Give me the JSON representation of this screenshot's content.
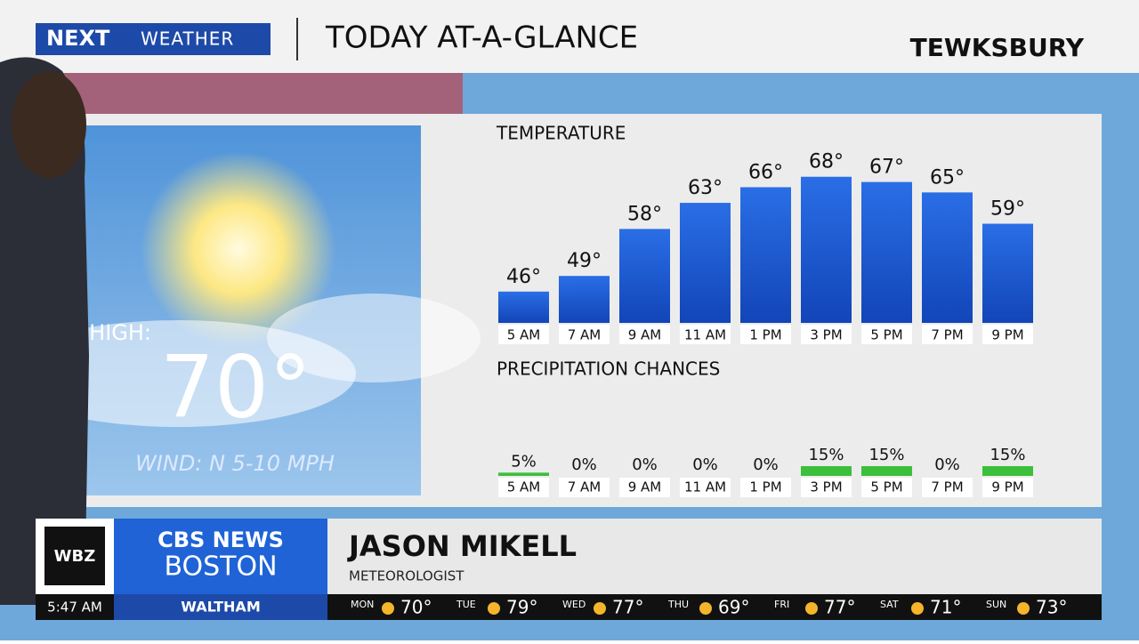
{
  "header": {
    "logo_next": "NEXT",
    "logo_weather": "WEATHER",
    "title": "TODAY AT-A-GLANCE",
    "location": "TEWKSBURY"
  },
  "summary": {
    "high_label": "HIGH:",
    "high": "70°",
    "wind": "WIND: N 5-10 MPH"
  },
  "chart_data": [
    {
      "type": "bar",
      "title": "TEMPERATURE",
      "categories": [
        "5 AM",
        "7 AM",
        "9 AM",
        "11 AM",
        "1 PM",
        "3 PM",
        "5 PM",
        "7 PM",
        "9 PM"
      ],
      "values": [
        46,
        49,
        58,
        63,
        66,
        68,
        67,
        65,
        59
      ],
      "value_labels": [
        "46°",
        "49°",
        "58°",
        "63°",
        "66°",
        "68°",
        "67°",
        "65°",
        "59°"
      ],
      "color": "#1f5fd8",
      "ylim": [
        40,
        70
      ]
    },
    {
      "type": "bar",
      "title": "PRECIPITATION CHANCES",
      "categories": [
        "5 AM",
        "7 AM",
        "9 AM",
        "11 AM",
        "1 PM",
        "3 PM",
        "5 PM",
        "7 PM",
        "9 PM"
      ],
      "values": [
        5,
        0,
        0,
        0,
        0,
        15,
        15,
        0,
        15
      ],
      "value_labels": [
        "5%",
        "0%",
        "0%",
        "0%",
        "0%",
        "15%",
        "15%",
        "0%",
        "15%"
      ],
      "color": "#3cbf3a",
      "ylim": [
        0,
        100
      ]
    }
  ],
  "lower_third": {
    "station": "WBZ",
    "network": "CBS NEWS",
    "city": "BOSTON",
    "name": "JASON MIKELL",
    "role": "METEOROLOGIST",
    "time": "5:47 AM",
    "place": "WALTHAM"
  },
  "forecast": [
    {
      "day": "MON",
      "temp": "70°"
    },
    {
      "day": "TUE",
      "temp": "79°"
    },
    {
      "day": "WED",
      "temp": "77°"
    },
    {
      "day": "THU",
      "temp": "69°"
    },
    {
      "day": "FRI",
      "temp": "77°"
    },
    {
      "day": "SAT",
      "temp": "71°"
    },
    {
      "day": "SUN",
      "temp": "73°"
    }
  ]
}
